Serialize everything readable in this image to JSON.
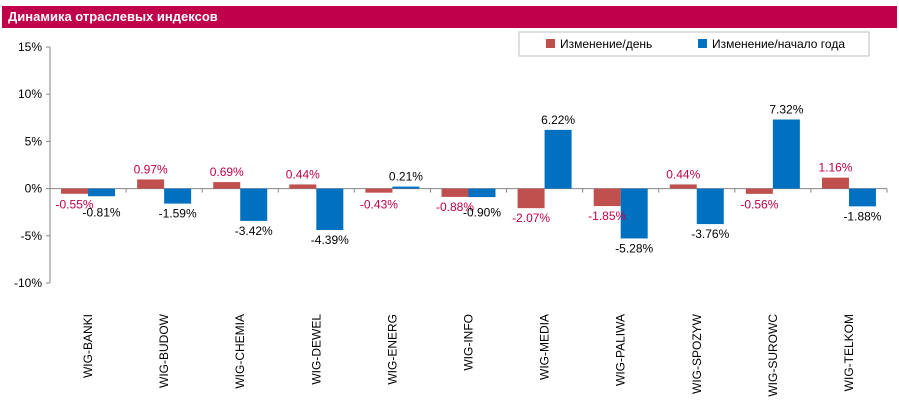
{
  "title": "Динамика отраслевых индексов",
  "colors": {
    "title_bg": "#c0004a",
    "series1": "#c0504d",
    "series2": "#0070c0",
    "label1": "#c0004a",
    "label2": "#000000"
  },
  "chart_data": {
    "type": "bar",
    "title": "Динамика отраслевых индексов",
    "ylim": [
      -10,
      15
    ],
    "yticks": [
      15,
      10,
      5,
      0,
      -5,
      -10
    ],
    "ytick_labels": [
      "15%",
      "10%",
      "5%",
      "0%",
      "-5%",
      "-10%"
    ],
    "grid": false,
    "legend_position": "top-right",
    "categories": [
      "WIG-BANKI",
      "WIG-BUDOW",
      "WIG-CHEMIA",
      "WIG-DEWEL",
      "WIG-ENERG",
      "WIG-INFO",
      "WIG-MEDIA",
      "WIG-PALIWA",
      "WIG-SPOZYW",
      "WIG-SUROWC",
      "WIG-TELKOM"
    ],
    "series": [
      {
        "name": "Изменение/день",
        "values": [
          -0.55,
          0.97,
          0.69,
          0.44,
          -0.43,
          -0.88,
          -2.07,
          -1.85,
          0.44,
          -0.56,
          1.16
        ],
        "labels": [
          "-0.55%",
          "0.97%",
          "0.69%",
          "0.44%",
          "-0.43%",
          "-0.88%",
          "-2.07%",
          "-1.85%",
          "0.44%",
          "-0.56%",
          "1.16%"
        ]
      },
      {
        "name": "Изменение/начало года",
        "values": [
          -0.81,
          -1.59,
          -3.42,
          -4.39,
          0.21,
          -0.9,
          6.22,
          -5.28,
          -3.76,
          7.32,
          -1.88
        ],
        "labels": [
          "-0.81%",
          "-1.59%",
          "-3.42%",
          "-4.39%",
          "0.21%",
          "-0.90%",
          "6.22%",
          "-5.28%",
          "-3.76%",
          "7.32%",
          "-1.88%"
        ]
      }
    ]
  }
}
